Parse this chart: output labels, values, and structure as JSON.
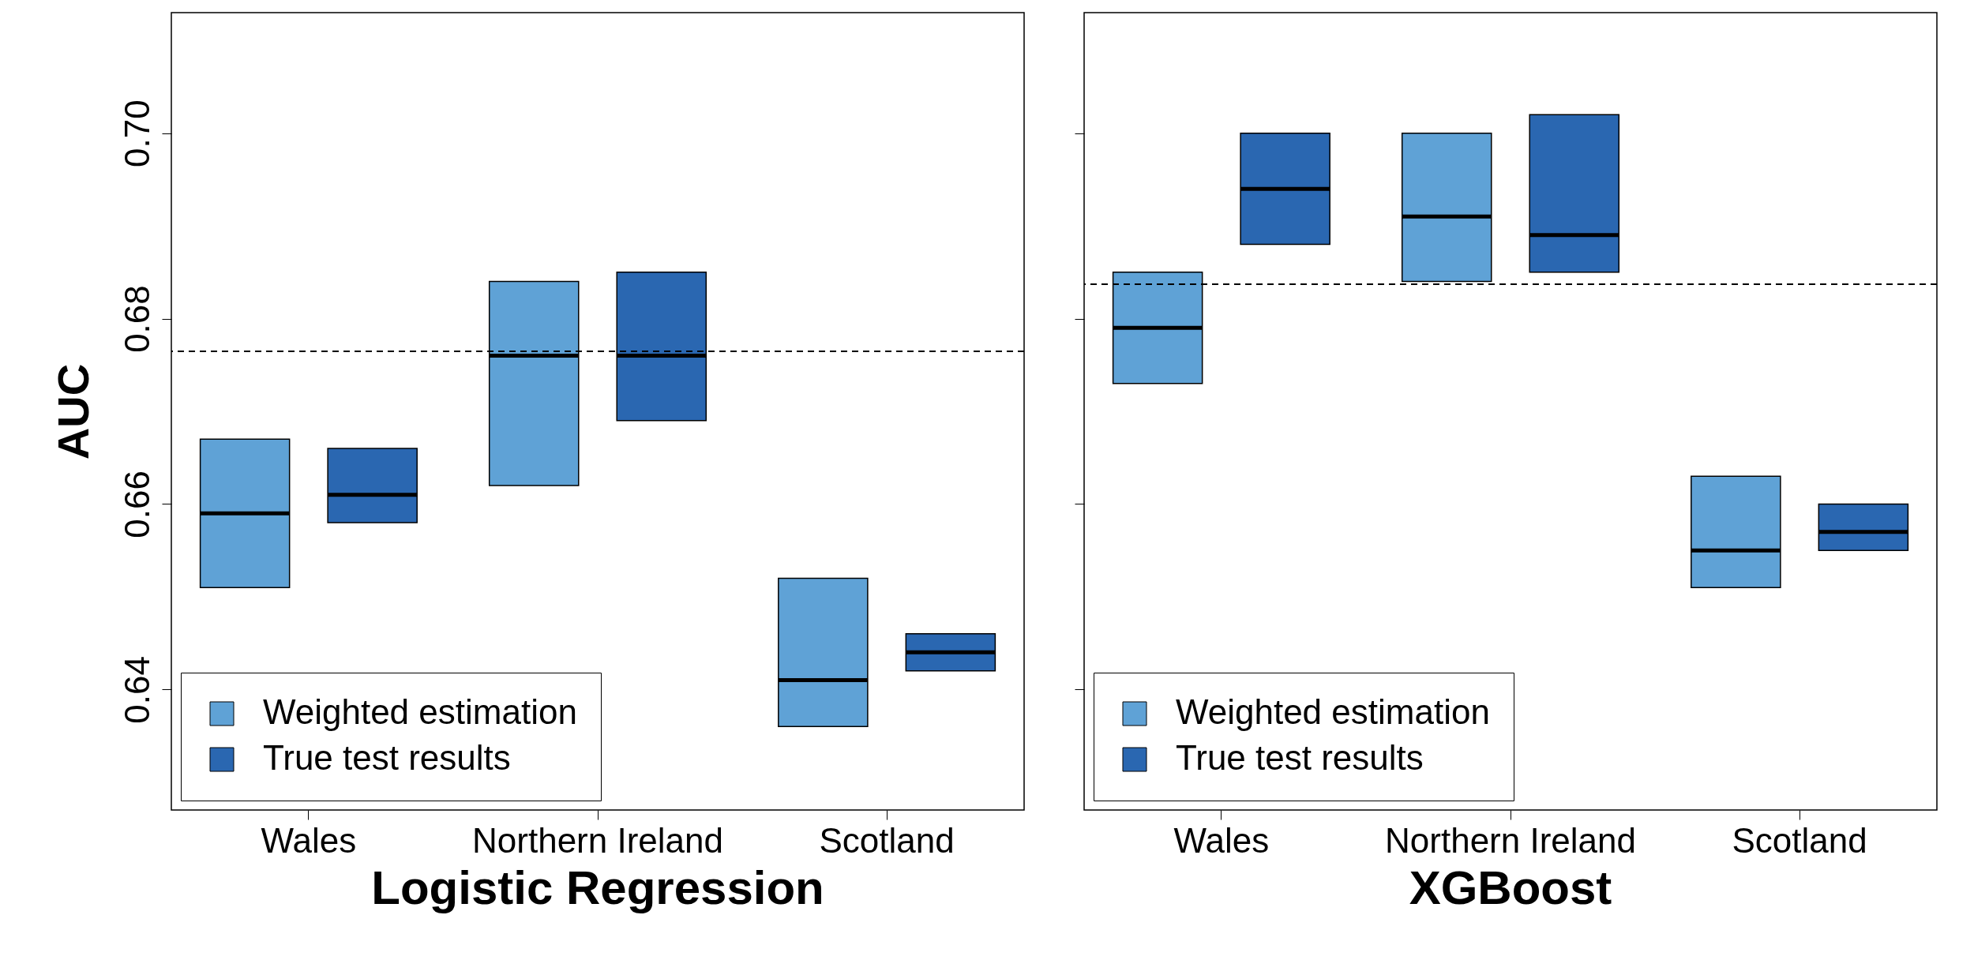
{
  "chart_data": [
    {
      "type": "box",
      "title": "Logistic Regression",
      "ylabel": "AUC",
      "categories": [
        "Wales",
        "Northern Ireland",
        "Scotland"
      ],
      "ylim": [
        0.627,
        0.713
      ],
      "yticks": [
        {
          "value": 0.64,
          "label": "0.64"
        },
        {
          "value": 0.66,
          "label": "0.66"
        },
        {
          "value": 0.68,
          "label": "0.68"
        },
        {
          "value": 0.7,
          "label": "0.70"
        }
      ],
      "legend": "bottom left",
      "series": [
        {
          "name": "Weighted estimation",
          "color": "#5fa2d6",
          "boxes": [
            {
              "low": 0.651,
              "q1": 0.651,
              "median": 0.659,
              "q3": 0.667,
              "high": 0.667
            },
            {
              "low": 0.662,
              "q1": 0.662,
              "median": 0.676,
              "q3": 0.684,
              "high": 0.684
            },
            {
              "low": 0.636,
              "q1": 0.636,
              "median": 0.641,
              "q3": 0.652,
              "high": 0.652
            }
          ]
        },
        {
          "name": "True test results",
          "color": "#2a67b1",
          "boxes": [
            {
              "low": 0.658,
              "q1": 0.658,
              "median": 0.661,
              "q3": 0.666,
              "high": 0.666
            },
            {
              "low": 0.669,
              "q1": 0.669,
              "median": 0.676,
              "q3": 0.685,
              "high": 0.685
            },
            {
              "low": 0.642,
              "q1": 0.642,
              "median": 0.644,
              "q3": 0.646,
              "high": 0.646
            }
          ]
        }
      ],
      "ref_lines": [
        {
          "axis": "y",
          "value": 0.6765,
          "line_style": "dashed"
        }
      ]
    },
    {
      "type": "box",
      "title": "XGBoost",
      "categories": [
        "Wales",
        "Northern Ireland",
        "Scotland"
      ],
      "ylim": [
        0.627,
        0.713
      ],
      "yticks": [
        {
          "value": 0.64,
          "label": null
        },
        {
          "value": 0.66,
          "label": null
        },
        {
          "value": 0.68,
          "label": null
        },
        {
          "value": 0.7,
          "label": null
        }
      ],
      "legend": "bottom left",
      "tick_labels": "x",
      "series": [
        {
          "name": "Weighted estimation",
          "color": "#5fa2d6",
          "boxes": [
            {
              "low": 0.673,
              "q1": 0.673,
              "median": 0.679,
              "q3": 0.685,
              "high": 0.685
            },
            {
              "low": 0.684,
              "q1": 0.684,
              "median": 0.691,
              "q3": 0.7,
              "high": 0.7
            },
            {
              "low": 0.651,
              "q1": 0.651,
              "median": 0.655,
              "q3": 0.663,
              "high": 0.663
            }
          ]
        },
        {
          "name": "True test results",
          "color": "#2a67b1",
          "boxes": [
            {
              "low": 0.688,
              "q1": 0.688,
              "median": 0.694,
              "q3": 0.7,
              "high": 0.7
            },
            {
              "low": 0.685,
              "q1": 0.685,
              "median": 0.689,
              "q3": 0.702,
              "high": 0.702
            },
            {
              "low": 0.655,
              "q1": 0.655,
              "median": 0.657,
              "q3": 0.66,
              "high": 0.66
            }
          ]
        }
      ],
      "ref_lines": [
        {
          "axis": "y",
          "value": 0.6837,
          "line_style": "dashed"
        }
      ]
    }
  ]
}
